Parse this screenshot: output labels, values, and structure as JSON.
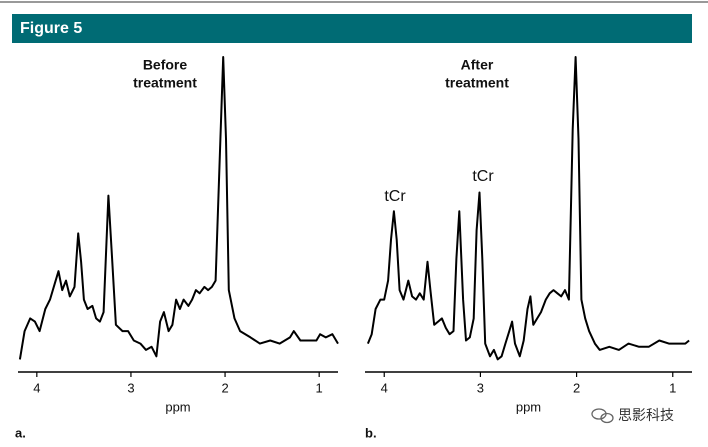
{
  "header": {
    "title": "Figure 5"
  },
  "watermark": "思影科技",
  "chart_data": [
    {
      "type": "line",
      "panel_label": "a.",
      "xlabel": "ppm",
      "annotations": [
        {
          "lines": [
            "Before",
            "treatment"
          ]
        }
      ],
      "x": [
        4.18,
        4.13,
        4.07,
        4.02,
        3.97,
        3.91,
        3.86,
        3.81,
        3.77,
        3.73,
        3.69,
        3.65,
        3.6,
        3.56,
        3.53,
        3.5,
        3.46,
        3.41,
        3.37,
        3.33,
        3.29,
        3.24,
        3.2,
        3.16,
        3.09,
        3.03,
        2.97,
        2.9,
        2.84,
        2.78,
        2.73,
        2.69,
        2.65,
        2.6,
        2.56,
        2.52,
        2.48,
        2.44,
        2.39,
        2.35,
        2.31,
        2.27,
        2.22,
        2.18,
        2.14,
        2.1,
        2.05,
        2.02,
        1.99,
        1.96,
        1.9,
        1.84,
        1.73,
        1.63,
        1.52,
        1.42,
        1.31,
        1.27,
        1.2,
        1.1,
        1.03,
        0.99,
        0.93,
        0.86,
        0.8
      ],
      "series": [
        {
          "color": "#000000",
          "values": [
            4,
            13,
            17,
            16,
            13,
            20,
            23,
            28,
            32,
            26,
            29,
            24,
            27,
            44,
            35,
            23,
            20,
            21,
            17,
            16,
            19,
            56,
            36,
            15,
            13,
            13,
            10,
            9,
            7,
            8,
            5,
            16,
            19,
            13,
            15,
            23,
            20,
            23,
            21,
            23,
            26,
            25,
            27,
            26,
            27,
            29,
            74,
            100,
            74,
            26,
            17,
            13,
            11,
            9,
            10,
            9,
            11,
            13,
            10,
            10,
            10,
            12,
            11,
            12,
            9
          ]
        }
      ],
      "xlim": [
        4.2,
        0.8
      ],
      "xticks": [
        4,
        3,
        2,
        1
      ],
      "ylim": [
        0,
        100
      ]
    },
    {
      "type": "line",
      "panel_label": "b.",
      "xlabel": "ppm",
      "annotations": [
        {
          "lines": [
            "After",
            "treatment"
          ]
        },
        {
          "lines": [
            "tCr"
          ]
        },
        {
          "lines": [
            "tCr"
          ]
        }
      ],
      "x": [
        4.17,
        4.13,
        4.09,
        4.04,
        4.0,
        3.96,
        3.93,
        3.9,
        3.87,
        3.84,
        3.8,
        3.75,
        3.71,
        3.67,
        3.63,
        3.59,
        3.55,
        3.52,
        3.48,
        3.44,
        3.4,
        3.36,
        3.32,
        3.28,
        3.25,
        3.22,
        3.18,
        3.15,
        3.11,
        3.07,
        3.04,
        3.01,
        2.98,
        2.95,
        2.9,
        2.86,
        2.82,
        2.78,
        2.74,
        2.7,
        2.67,
        2.64,
        2.59,
        2.55,
        2.51,
        2.48,
        2.45,
        2.41,
        2.37,
        2.32,
        2.28,
        2.24,
        2.2,
        2.16,
        2.12,
        2.08,
        2.04,
        2.01,
        1.98,
        1.95,
        1.91,
        1.87,
        1.81,
        1.76,
        1.66,
        1.56,
        1.46,
        1.35,
        1.25,
        1.14,
        1.04,
        0.94,
        0.87,
        0.83
      ],
      "series": [
        {
          "color": "#000000",
          "values": [
            9,
            12,
            20,
            23,
            23,
            29,
            42,
            51,
            42,
            26,
            23,
            29,
            24,
            23,
            25,
            23,
            35,
            26,
            15,
            16,
            17,
            14,
            12,
            13,
            36,
            51,
            23,
            10,
            11,
            17,
            45,
            57,
            36,
            9,
            5,
            7,
            4,
            5,
            9,
            13,
            16,
            9,
            5,
            10,
            20,
            24,
            15,
            17,
            19,
            23,
            25,
            26,
            25,
            24,
            26,
            23,
            77,
            100,
            74,
            23,
            17,
            13,
            9,
            7,
            8,
            7,
            9,
            8,
            8,
            10,
            9,
            9,
            9,
            10
          ]
        }
      ],
      "xlim": [
        4.2,
        0.8
      ],
      "xticks": [
        4,
        3,
        2,
        1
      ],
      "ylim": [
        0,
        100
      ]
    }
  ]
}
